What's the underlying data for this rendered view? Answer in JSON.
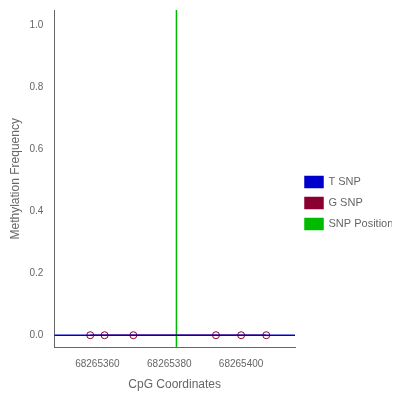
{
  "chart_data": {
    "type": "line",
    "xlabel": "CpG Coordinates",
    "ylabel": "Methylation Frequency",
    "xlim": [
      68265348,
      68265415
    ],
    "xticks": [
      68265360,
      68265380,
      68265400
    ],
    "ylim": [
      -0.04,
      1.05
    ],
    "yticks": [
      {
        "value": 0.0,
        "label": "0.0"
      },
      0.2,
      0.4,
      0.6,
      0.8,
      {
        "value": 1.0,
        "label": "1.0"
      }
    ],
    "grid": false,
    "legend": "center right",
    "series": [
      {
        "name": "T SNP",
        "color": "#0000cc",
        "marker": "none",
        "line_style": "solid",
        "x": [
          68265348,
          68265415
        ],
        "values": [
          0.0,
          0.0
        ]
      },
      {
        "name": "G SNP",
        "color": "#8b0030",
        "marker": "circle",
        "line_style": "solid",
        "x": [
          68265358,
          68265362,
          68265370,
          68265393,
          68265400,
          68265407
        ],
        "values": [
          0.0,
          0.0,
          0.0,
          0.0,
          0.0,
          0.0
        ]
      },
      {
        "name": "SNP Position",
        "color": "#00bb00",
        "marker": "none",
        "line_style": "solid",
        "x": [
          68265382,
          68265382
        ],
        "values": [
          -0.04,
          1.05
        ]
      }
    ]
  }
}
